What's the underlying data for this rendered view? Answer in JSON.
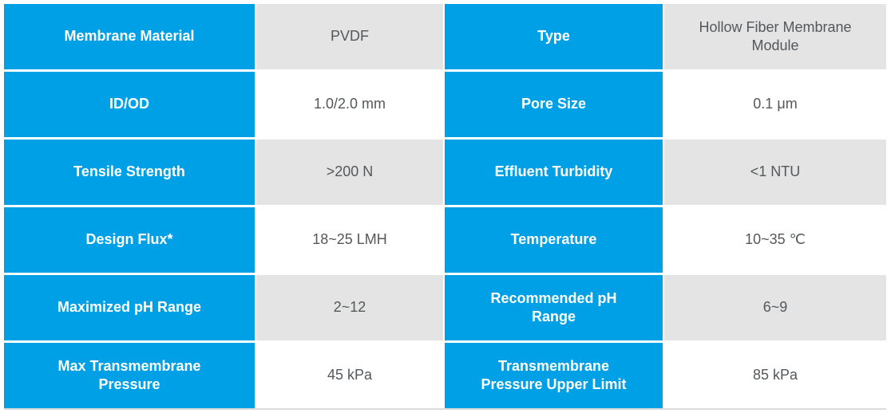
{
  "colors": {
    "label_cell_background": "#00A0E6",
    "label_text": "#ffffff",
    "value_cell_shaded_background": "#E4E4E4",
    "value_cell_plain_background": "#ffffff",
    "value_text": "#54585B",
    "table_bottom_rule": "#dcdcdc"
  },
  "table": {
    "description": "Membrane product specification table",
    "rows": [
      {
        "label_left": "Membrane Material",
        "value_left": "PVDF",
        "label_right": "Type",
        "value_right": "Hollow Fiber Membrane Module"
      },
      {
        "label_left": "ID/OD",
        "value_left": "1.0/2.0 mm",
        "label_right": "Pore Size",
        "value_right": "0.1 μm"
      },
      {
        "label_left": "Tensile Strength",
        "value_left": ">200 N",
        "label_right": "Effluent Turbidity",
        "value_right": "<1 NTU"
      },
      {
        "label_left": "Design Flux*",
        "value_left": "18~25 LMH",
        "label_right": "Temperature",
        "value_right": "10~35 ℃"
      },
      {
        "label_left": "Maximized pH Range",
        "value_left": "2~12",
        "label_right": "Recommended pH Range",
        "value_right": "6~9"
      },
      {
        "label_left": "Max Transmembrane Pressure",
        "value_left": "45 kPa",
        "label_right": "Transmembrane Pressure Upper Limit",
        "value_right": "85 kPa"
      }
    ]
  }
}
